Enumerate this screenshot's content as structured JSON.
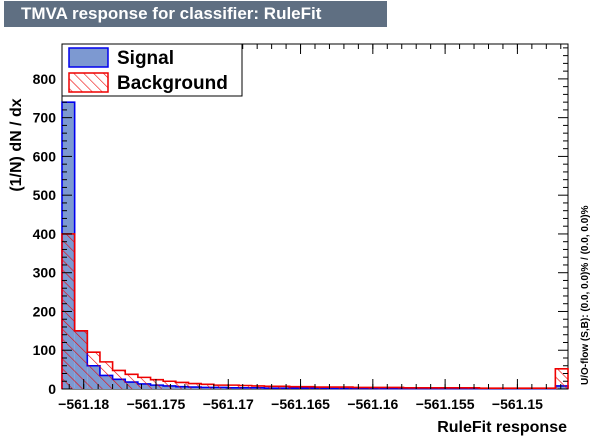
{
  "chart_data": {
    "type": "bar",
    "title": "TMVA response for classifier: RuleFit",
    "xlabel": "RuleFit response",
    "ylabel": "(1/N) dN / dx",
    "xlim": [
      -561.1815,
      -561.1465
    ],
    "ylim": [
      0,
      890
    ],
    "x_ticks": [
      {
        "v": -561.18,
        "label": "−561.18"
      },
      {
        "v": -561.175,
        "label": "−561.175"
      },
      {
        "v": -561.17,
        "label": "−561.17"
      },
      {
        "v": -561.165,
        "label": "−561.165"
      },
      {
        "v": -561.16,
        "label": "−561.16"
      },
      {
        "v": -561.155,
        "label": "−561.155"
      },
      {
        "v": -561.15,
        "label": "−561.15"
      }
    ],
    "y_ticks": [
      0,
      100,
      200,
      300,
      400,
      500,
      600,
      700,
      800
    ],
    "bin_start": -561.1815,
    "bin_width": 0.000875,
    "series": [
      {
        "name": "Signal",
        "color": "#0000ee",
        "fill": "#7d99d1",
        "values": [
          740,
          150,
          60,
          35,
          25,
          18,
          13,
          10,
          8,
          6,
          5,
          4,
          4,
          3,
          3,
          3,
          2,
          2,
          2,
          2,
          2,
          1.5,
          1.5,
          1.5,
          1.5,
          1,
          1,
          1,
          1,
          1,
          1,
          1,
          1,
          1,
          1,
          1,
          1,
          1,
          1,
          8
        ]
      },
      {
        "name": "Background",
        "color": "#ee0000",
        "fill": "hatch",
        "values": [
          400,
          150,
          95,
          70,
          48,
          38,
          30,
          24,
          20,
          17,
          14,
          12,
          10,
          10,
          9,
          8,
          7,
          7,
          6,
          6,
          5,
          5,
          5,
          4,
          4,
          4,
          4,
          3,
          3,
          3,
          3,
          3,
          3,
          2,
          2,
          2,
          2,
          2,
          2,
          52
        ]
      }
    ],
    "legend_position": "top-left",
    "side_note": "U/O-flow (S,B): (0.0, 0.0)% / (0.0, 0.0)%"
  }
}
